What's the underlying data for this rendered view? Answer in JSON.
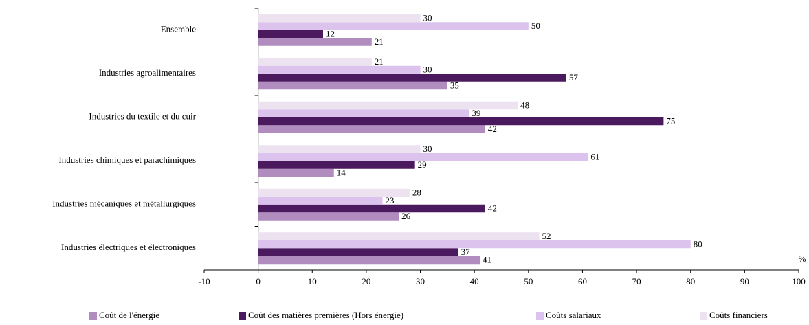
{
  "chart_data": {
    "type": "hbar",
    "categories": [
      "Ensemble",
      "Industries agroalimentaires",
      "Industries du textile et du cuir",
      "Industries chimiques et parachimiques",
      "Industries mécaniques et métallurgiques",
      "Industries électriques et électroniques"
    ],
    "series": [
      {
        "name": "Coût de l'énergie",
        "color": "#b08cbf",
        "values": [
          21,
          35,
          42,
          14,
          26,
          41
        ]
      },
      {
        "name": "Coût des matières premières (Hors énergie)",
        "color": "#4b1a5e",
        "values": [
          12,
          57,
          75,
          29,
          42,
          37
        ]
      },
      {
        "name": "Coûts salariaux",
        "color": "#dcc3ee",
        "values": [
          50,
          30,
          39,
          61,
          23,
          80
        ]
      },
      {
        "name": "Coûts financiers",
        "color": "#ece2f0",
        "values": [
          30,
          21,
          48,
          30,
          28,
          52
        ]
      }
    ],
    "xlim": [
      -10,
      100
    ],
    "xticks": [
      -10,
      0,
      10,
      20,
      30,
      40,
      50,
      60,
      70,
      80,
      90,
      100
    ],
    "unit_label": "%"
  }
}
